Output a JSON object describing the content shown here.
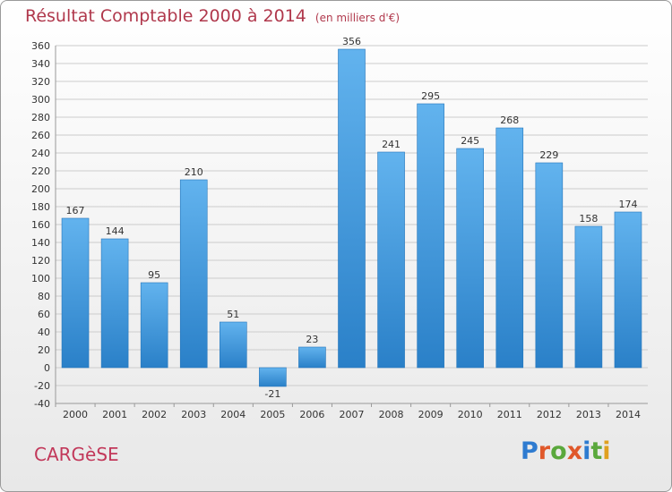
{
  "header": {
    "title": "Résultat Comptable 2000 à 2014",
    "unit": "(en milliers d'€)"
  },
  "commune": "CARGèSE",
  "brand": {
    "name": "Proxiti",
    "letter_colors": [
      "#2e7bd0",
      "#e0582a",
      "#5aa83c",
      "#e0582a",
      "#2e7bd0",
      "#5aa83c",
      "#e0a020"
    ]
  },
  "colors": {
    "bar_top": "#62b3ee",
    "bar_bottom": "#2a80c8",
    "grid": "#cccccc",
    "title": "#b0384c"
  },
  "chart_data": {
    "type": "bar",
    "title": "Résultat Comptable 2000 à 2014",
    "subtitle": "(en milliers d'€)",
    "xlabel": "",
    "ylabel": "",
    "categories": [
      "2000",
      "2001",
      "2002",
      "2003",
      "2004",
      "2005",
      "2006",
      "2007",
      "2008",
      "2009",
      "2010",
      "2011",
      "2012",
      "2013",
      "2014"
    ],
    "values": [
      167,
      144,
      95,
      210,
      51,
      -21,
      23,
      356,
      241,
      295,
      245,
      268,
      229,
      158,
      174
    ],
    "ylim": [
      -40,
      360
    ],
    "ytick_step": 20,
    "grid": true,
    "legend": "none"
  }
}
